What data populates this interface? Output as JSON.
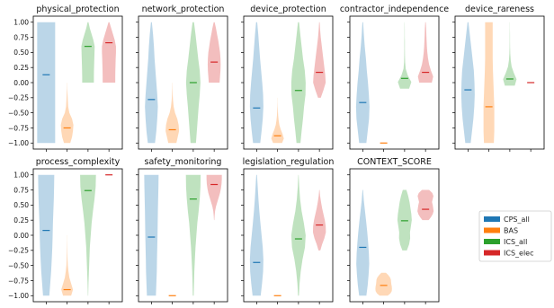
{
  "figure": {
    "legend_placement": "right",
    "y_ticks": [
      -1.0,
      -0.75,
      -0.5,
      -0.25,
      0.0,
      0.25,
      0.5,
      0.75,
      1.0
    ],
    "y_tick_labels": [
      "−1.00",
      "−0.75",
      "−0.50",
      "−0.25",
      "0.00",
      "0.25",
      "0.50",
      "0.75",
      "1.00"
    ],
    "ylim": [
      -1.1,
      1.1
    ],
    "series_colors": {
      "CPS_all": "#1f77b4",
      "BAS": "#ff7f0e",
      "ICS_all": "#2ca02c",
      "ICS_elec": "#d62728"
    }
  },
  "chart_data": [
    {
      "type": "violin",
      "title": "physical_protection",
      "series": [
        {
          "name": "CPS_all",
          "median": 0.13,
          "range": [
            -1.0,
            1.0
          ],
          "widths": [
            1,
            1,
            1,
            1,
            1,
            1,
            1,
            1,
            1,
            1,
            1
          ]
        },
        {
          "name": "BAS",
          "median": -0.75,
          "range": [
            -1.0,
            0.0
          ],
          "widths": [
            0.35,
            0.55,
            0.65,
            0.7,
            0.55,
            0.25,
            0.12,
            0.08,
            0.05,
            0.02,
            0.0
          ]
        },
        {
          "name": "ICS_all",
          "median": 0.6,
          "range": [
            0.0,
            1.0
          ],
          "widths": [
            0.65,
            0.65,
            0.66,
            0.68,
            0.7,
            0.72,
            0.74,
            0.6,
            0.4,
            0.2,
            0.05
          ]
        },
        {
          "name": "ICS_elec",
          "median": 0.66,
          "range": [
            0.0,
            1.0
          ],
          "widths": [
            0.7,
            0.7,
            0.71,
            0.73,
            0.75,
            0.78,
            0.78,
            0.65,
            0.45,
            0.25,
            0.05
          ]
        }
      ]
    },
    {
      "type": "violin",
      "title": "network_protection",
      "series": [
        {
          "name": "CPS_all",
          "median": -0.28,
          "range": [
            -1.0,
            1.0
          ],
          "widths": [
            0.4,
            0.55,
            0.65,
            0.72,
            0.65,
            0.55,
            0.45,
            0.35,
            0.28,
            0.18,
            0.05
          ]
        },
        {
          "name": "BAS",
          "median": -0.78,
          "range": [
            -1.0,
            0.0
          ],
          "widths": [
            0.45,
            0.6,
            0.75,
            0.7,
            0.55,
            0.3,
            0.15,
            0.08,
            0.04,
            0.02,
            0.0
          ]
        },
        {
          "name": "ICS_all",
          "median": 0.0,
          "range": [
            -1.0,
            1.0
          ],
          "widths": [
            0.3,
            0.4,
            0.5,
            0.6,
            0.72,
            0.8,
            0.72,
            0.55,
            0.4,
            0.25,
            0.08
          ]
        },
        {
          "name": "ICS_elec",
          "median": 0.34,
          "range": [
            0.0,
            1.0
          ],
          "widths": [
            0.6,
            0.65,
            0.7,
            0.72,
            0.7,
            0.65,
            0.55,
            0.45,
            0.32,
            0.2,
            0.05
          ]
        }
      ]
    },
    {
      "type": "violin",
      "title": "device_protection",
      "series": [
        {
          "name": "CPS_all",
          "median": -0.42,
          "range": [
            -1.0,
            1.0
          ],
          "widths": [
            0.4,
            0.55,
            0.68,
            0.75,
            0.72,
            0.62,
            0.5,
            0.38,
            0.28,
            0.18,
            0.06
          ]
        },
        {
          "name": "BAS",
          "median": -0.88,
          "range": [
            -1.0,
            -0.25
          ],
          "widths": [
            0.5,
            0.7,
            0.55,
            0.35,
            0.2,
            0.12,
            0.07,
            0.04,
            0.02,
            0.01,
            0.0
          ]
        },
        {
          "name": "ICS_all",
          "median": -0.13,
          "range": [
            -1.0,
            1.0
          ],
          "widths": [
            0.22,
            0.35,
            0.5,
            0.62,
            0.78,
            0.8,
            0.7,
            0.5,
            0.35,
            0.2,
            0.06
          ]
        },
        {
          "name": "ICS_elec",
          "median": 0.17,
          "range": [
            -0.25,
            1.0
          ],
          "widths": [
            0.15,
            0.45,
            0.7,
            0.65,
            0.55,
            0.45,
            0.35,
            0.25,
            0.15,
            0.08,
            0.03
          ]
        }
      ]
    },
    {
      "type": "violin",
      "title": "contractor_independence",
      "series": [
        {
          "name": "CPS_all",
          "median": -0.33,
          "range": [
            -1.0,
            1.0
          ],
          "widths": [
            0.4,
            0.55,
            0.7,
            0.75,
            0.68,
            0.58,
            0.45,
            0.35,
            0.22,
            0.12,
            0.04
          ]
        },
        {
          "name": "BAS",
          "median": -1.0,
          "range": [
            -1.0,
            -1.0
          ],
          "widths": [
            1,
            1,
            1,
            1,
            1,
            1,
            1,
            1,
            1,
            1,
            1
          ]
        },
        {
          "name": "ICS_all",
          "median": 0.07,
          "range": [
            -0.1,
            1.0
          ],
          "widths": [
            0.5,
            0.75,
            0.35,
            0.12,
            0.06,
            0.04,
            0.03,
            0.03,
            0.02,
            0.02,
            0.01
          ]
        },
        {
          "name": "ICS_elec",
          "median": 0.17,
          "range": [
            0.0,
            1.0
          ],
          "widths": [
            0.7,
            0.85,
            0.6,
            0.4,
            0.28,
            0.2,
            0.15,
            0.12,
            0.09,
            0.07,
            0.03
          ]
        }
      ]
    },
    {
      "type": "violin",
      "title": "device_rareness",
      "series": [
        {
          "name": "CPS_all",
          "median": -0.12,
          "range": [
            -1.0,
            1.0
          ],
          "widths": [
            0.3,
            0.45,
            0.6,
            0.7,
            0.75,
            0.72,
            0.65,
            0.5,
            0.35,
            0.2,
            0.05
          ]
        },
        {
          "name": "BAS",
          "median": -0.4,
          "range": [
            -1.0,
            1.0
          ],
          "widths": [
            0.55,
            0.6,
            0.6,
            0.6,
            0.55,
            0.5,
            0.45,
            0.42,
            0.42,
            0.42,
            0.42
          ]
        },
        {
          "name": "ICS_all",
          "median": 0.06,
          "range": [
            -0.05,
            1.0
          ],
          "widths": [
            0.55,
            0.75,
            0.45,
            0.2,
            0.1,
            0.05,
            0.03,
            0.02,
            0.02,
            0.01,
            0.01
          ]
        },
        {
          "name": "ICS_elec",
          "median": 0.0,
          "range": [
            0.0,
            0.0
          ],
          "widths": [
            1,
            1,
            1,
            1,
            1,
            1,
            1,
            1,
            1,
            1,
            1
          ]
        }
      ]
    },
    {
      "type": "violin",
      "title": "process_complexity",
      "series": [
        {
          "name": "CPS_all",
          "median": 0.08,
          "range": [
            -1.0,
            1.0
          ],
          "widths": [
            0.35,
            0.45,
            0.55,
            0.62,
            0.68,
            0.72,
            0.75,
            0.8,
            0.85,
            0.88,
            0.9
          ]
        },
        {
          "name": "BAS",
          "median": -0.9,
          "range": [
            -1.0,
            0.0
          ],
          "widths": [
            0.45,
            0.65,
            0.45,
            0.25,
            0.15,
            0.08,
            0.05,
            0.03,
            0.02,
            0.01,
            0.0
          ]
        },
        {
          "name": "ICS_all",
          "median": 0.74,
          "range": [
            -1.0,
            1.0
          ],
          "widths": [
            0.02,
            0.05,
            0.1,
            0.15,
            0.2,
            0.3,
            0.4,
            0.55,
            0.72,
            0.85,
            0.88
          ]
        },
        {
          "name": "ICS_elec",
          "median": 1.0,
          "range": [
            1.0,
            1.0
          ],
          "widths": [
            1,
            1,
            1,
            1,
            1,
            1,
            1,
            1,
            1,
            1,
            1
          ]
        }
      ]
    },
    {
      "type": "violin",
      "title": "safety_monitoring",
      "series": [
        {
          "name": "CPS_all",
          "median": -0.03,
          "range": [
            -1.0,
            1.0
          ],
          "widths": [
            0.5,
            0.55,
            0.6,
            0.62,
            0.65,
            0.68,
            0.7,
            0.72,
            0.75,
            0.78,
            0.8
          ]
        },
        {
          "name": "BAS",
          "median": -1.0,
          "range": [
            -1.0,
            -1.0
          ],
          "widths": [
            1,
            1,
            1,
            1,
            1,
            1,
            1,
            1,
            1,
            1,
            1
          ]
        },
        {
          "name": "ICS_all",
          "median": 0.6,
          "range": [
            -1.0,
            1.0
          ],
          "widths": [
            0.05,
            0.08,
            0.12,
            0.18,
            0.25,
            0.35,
            0.45,
            0.6,
            0.72,
            0.8,
            0.82
          ]
        },
        {
          "name": "ICS_elec",
          "median": 0.84,
          "range": [
            0.25,
            1.0
          ],
          "widths": [
            0.02,
            0.05,
            0.1,
            0.2,
            0.35,
            0.5,
            0.65,
            0.75,
            0.82,
            0.85,
            0.85
          ]
        }
      ]
    },
    {
      "type": "violin",
      "title": "legislation_regulation",
      "series": [
        {
          "name": "CPS_all",
          "median": -0.45,
          "range": [
            -1.0,
            1.0
          ],
          "widths": [
            0.45,
            0.6,
            0.72,
            0.75,
            0.68,
            0.55,
            0.42,
            0.3,
            0.2,
            0.12,
            0.04
          ]
        },
        {
          "name": "BAS",
          "median": -1.0,
          "range": [
            -1.0,
            -1.0
          ],
          "widths": [
            1,
            1,
            1,
            1,
            1,
            1,
            1,
            1,
            1,
            1,
            1
          ]
        },
        {
          "name": "ICS_all",
          "median": -0.06,
          "range": [
            -1.0,
            1.0
          ],
          "widths": [
            0.05,
            0.12,
            0.25,
            0.45,
            0.72,
            0.8,
            0.6,
            0.35,
            0.18,
            0.08,
            0.02
          ]
        },
        {
          "name": "ICS_elec",
          "median": 0.17,
          "range": [
            -0.25,
            0.75
          ],
          "widths": [
            0.1,
            0.3,
            0.55,
            0.72,
            0.7,
            0.6,
            0.45,
            0.3,
            0.18,
            0.08,
            0.02
          ]
        }
      ]
    },
    {
      "type": "violin",
      "title": "CONTEXT_SCORE",
      "series": [
        {
          "name": "CPS_all",
          "median": -0.2,
          "range": [
            -1.0,
            0.75
          ],
          "widths": [
            0.4,
            0.55,
            0.65,
            0.72,
            0.68,
            0.6,
            0.5,
            0.38,
            0.25,
            0.12,
            0.03
          ]
        },
        {
          "name": "BAS",
          "median": -0.83,
          "range": [
            -1.0,
            -0.62
          ],
          "widths": [
            0.45,
            0.75,
            0.9,
            0.92,
            0.9,
            0.85,
            0.82,
            0.8,
            0.7,
            0.5,
            0.25
          ]
        },
        {
          "name": "ICS_all",
          "median": 0.24,
          "range": [
            -0.25,
            0.75
          ],
          "widths": [
            0.25,
            0.5,
            0.62,
            0.6,
            0.7,
            0.8,
            0.75,
            0.65,
            0.55,
            0.4,
            0.2
          ]
        },
        {
          "name": "ICS_elec",
          "median": 0.43,
          "range": [
            0.25,
            0.75
          ],
          "widths": [
            0.35,
            0.6,
            0.8,
            0.9,
            0.85,
            0.8,
            0.72,
            0.8,
            0.88,
            0.75,
            0.4
          ]
        }
      ]
    }
  ],
  "legend": {
    "entries": [
      {
        "name": "CPS_all",
        "color": "#1f77b4"
      },
      {
        "name": "BAS",
        "color": "#ff7f0e"
      },
      {
        "name": "ICS_all",
        "color": "#2ca02c"
      },
      {
        "name": "ICS_elec",
        "color": "#d62728"
      }
    ]
  }
}
